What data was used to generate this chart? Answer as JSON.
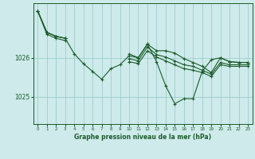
{
  "background_color": "#ceeaea",
  "plot_bg_color": "#ceeaea",
  "grid_color": "#9ecece",
  "line_color": "#1a5c2a",
  "xlabel": "Graphe pression niveau de la mer (hPa)",
  "xlim_left": -0.5,
  "xlim_right": 23.5,
  "ylim": [
    1024.3,
    1027.4
  ],
  "yticks": [
    1025,
    1026
  ],
  "hours": [
    0,
    1,
    2,
    3,
    4,
    5,
    6,
    7,
    8,
    9,
    10,
    11,
    12,
    13,
    14,
    15,
    16,
    17,
    18,
    19,
    20,
    21,
    22,
    23
  ],
  "series1": [
    1027.2,
    1026.65,
    1026.55,
    1026.5,
    1026.1,
    1025.85,
    1025.65,
    1025.45,
    1025.72,
    1025.82,
    1026.05,
    1026.0,
    1026.35,
    1025.9,
    1025.28,
    1024.82,
    1024.95,
    1024.95,
    1025.65,
    1025.95,
    1026.0,
    1025.9,
    1025.88,
    1025.88
  ],
  "series2": [
    1027.2,
    1026.65,
    1026.55,
    1026.5,
    null,
    null,
    null,
    null,
    null,
    null,
    1026.1,
    1026.0,
    1026.35,
    1026.18,
    1026.18,
    1026.12,
    1025.98,
    1025.88,
    1025.78,
    1025.62,
    1026.0,
    1025.9,
    1025.88,
    1025.88
  ],
  "series3": [
    1027.2,
    1026.65,
    1026.55,
    1026.5,
    null,
    null,
    null,
    null,
    null,
    null,
    1025.98,
    1025.92,
    1026.28,
    1026.08,
    1026.02,
    1025.92,
    1025.82,
    1025.78,
    1025.68,
    1025.58,
    1025.88,
    1025.82,
    1025.82,
    1025.82
  ],
  "series4": [
    1027.2,
    1026.6,
    1026.5,
    1026.44,
    null,
    null,
    null,
    null,
    null,
    null,
    1025.9,
    1025.85,
    1026.18,
    1026.02,
    1025.92,
    1025.82,
    1025.72,
    1025.68,
    1025.62,
    1025.52,
    1025.82,
    1025.78,
    1025.78,
    1025.78
  ]
}
